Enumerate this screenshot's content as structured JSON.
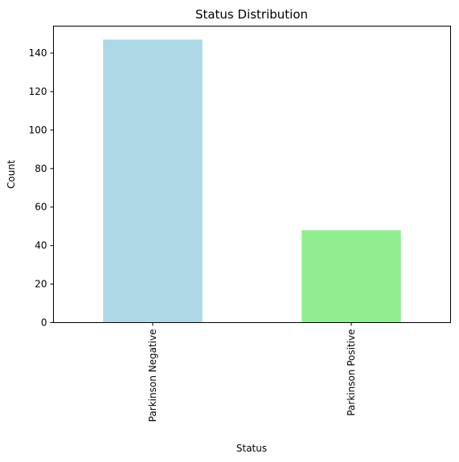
{
  "chart_data": {
    "type": "bar",
    "title": "Status Distribution",
    "xlabel": "Status",
    "ylabel": "Count",
    "categories": [
      "Parkinson Negative",
      "Parkinson Positive"
    ],
    "values": [
      147,
      48
    ],
    "colors": [
      "#add8e6",
      "#90ee90"
    ],
    "ylim": [
      0,
      154
    ],
    "yticks": [
      0,
      20,
      40,
      60,
      80,
      100,
      120,
      140
    ],
    "grid": false,
    "legend": "none"
  }
}
